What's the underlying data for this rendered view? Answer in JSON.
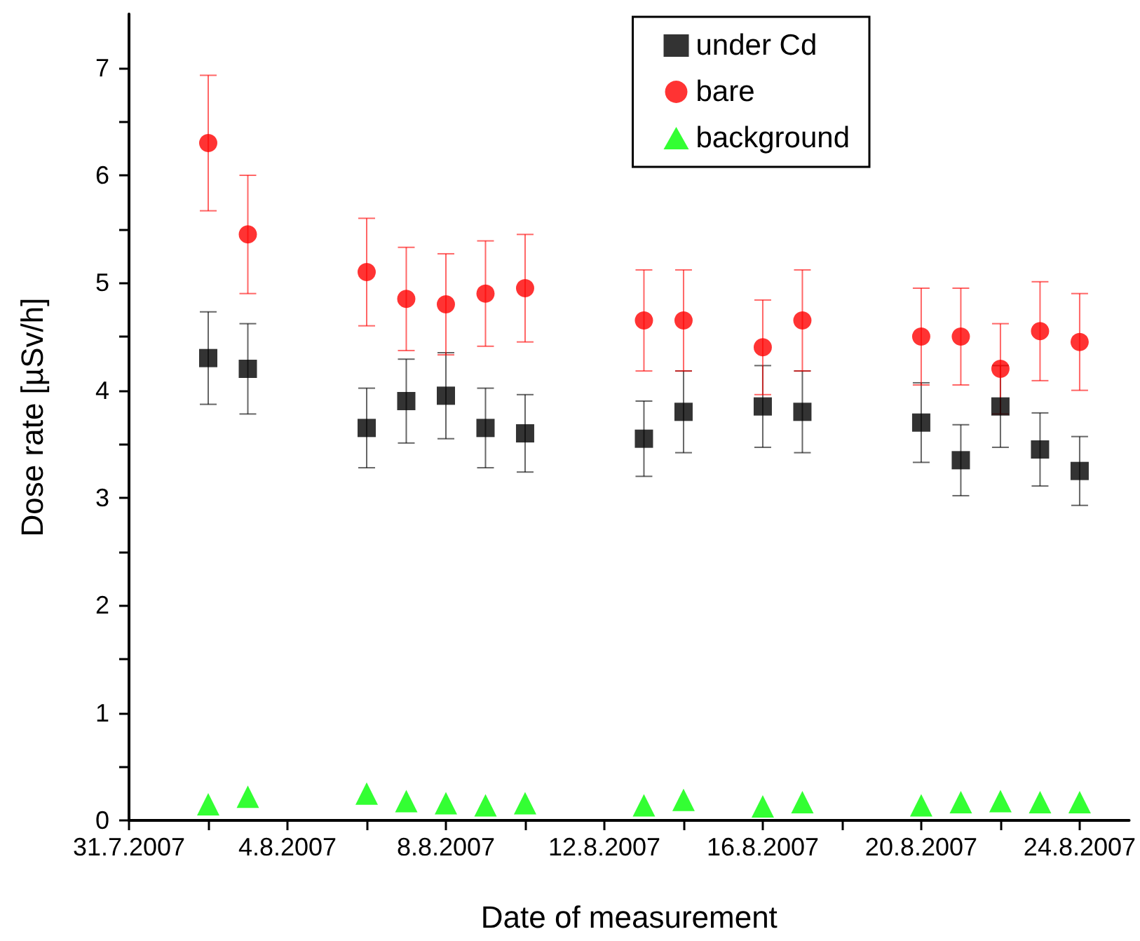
{
  "chart_data": {
    "type": "scatter",
    "xlabel": "Date of measurement",
    "ylabel": "Dose rate [µSv/h]",
    "x": [
      "2007-08-02",
      "2007-08-03",
      "2007-08-06",
      "2007-08-07",
      "2007-08-08",
      "2007-08-09",
      "2007-08-10",
      "2007-08-13",
      "2007-08-14",
      "2007-08-16",
      "2007-08-17",
      "2007-08-20",
      "2007-08-21",
      "2007-08-22",
      "2007-08-23",
      "2007-08-24"
    ],
    "series": [
      {
        "name": "under Cd",
        "color": "#000000",
        "marker": "square",
        "values": [
          4.3,
          4.2,
          3.65,
          3.9,
          3.95,
          3.65,
          3.6,
          3.55,
          3.8,
          3.85,
          3.8,
          3.7,
          3.35,
          3.85,
          3.45,
          3.25
        ],
        "errors": [
          0.43,
          0.42,
          0.37,
          0.39,
          0.4,
          0.37,
          0.36,
          0.35,
          0.38,
          0.38,
          0.38,
          0.37,
          0.33,
          0.38,
          0.34,
          0.32
        ]
      },
      {
        "name": "bare",
        "color": "#ff0000",
        "marker": "circle",
        "values": [
          6.3,
          5.45,
          5.1,
          4.85,
          4.8,
          4.9,
          4.95,
          4.65,
          4.65,
          4.4,
          4.65,
          4.5,
          4.5,
          4.2,
          4.55,
          4.45
        ],
        "errors": [
          0.63,
          0.55,
          0.5,
          0.48,
          0.47,
          0.49,
          0.5,
          0.47,
          0.47,
          0.44,
          0.47,
          0.45,
          0.45,
          0.42,
          0.46,
          0.45
        ]
      },
      {
        "name": "background",
        "color": "#00ff00",
        "marker": "triangle",
        "values": [
          0.15,
          0.22,
          0.25,
          0.18,
          0.16,
          0.14,
          0.16,
          0.14,
          0.19,
          0.13,
          0.17,
          0.14,
          0.17,
          0.18,
          0.17,
          0.17
        ]
      }
    ],
    "xlim": [
      "2007-07-31",
      "2007-08-25T06:00"
    ],
    "xticks": [
      {
        "value": "2007-07-31",
        "label": "31.7.2007"
      },
      {
        "value": "2007-08-02",
        "label": null
      },
      {
        "value": "2007-08-04",
        "label": "4.8.2007"
      },
      {
        "value": "2007-08-06",
        "label": null
      },
      {
        "value": "2007-08-08",
        "label": "8.8.2007"
      },
      {
        "value": "2007-08-10",
        "label": null
      },
      {
        "value": "2007-08-12",
        "label": "12.8.2007"
      },
      {
        "value": "2007-08-14",
        "label": null
      },
      {
        "value": "2007-08-16",
        "label": "16.8.2007"
      },
      {
        "value": "2007-08-18",
        "label": null
      },
      {
        "value": "2007-08-20",
        "label": "20.8.2007"
      },
      {
        "value": "2007-08-22",
        "label": null
      },
      {
        "value": "2007-08-24",
        "label": "24.8.2007"
      }
    ],
    "ylim": [
      0,
      7.5
    ],
    "yticks": [
      0,
      {
        "value": 0.5,
        "label": null
      },
      1,
      {
        "value": 1.5,
        "label": null
      },
      2,
      {
        "value": 2.5,
        "label": null
      },
      3,
      {
        "value": 3.5,
        "label": null
      },
      4,
      {
        "value": 4.5,
        "label": null
      },
      5,
      {
        "value": 5.5,
        "label": null
      },
      6,
      {
        "value": 6.5,
        "label": null
      },
      7
    ],
    "grid": false,
    "legend": "top right"
  }
}
